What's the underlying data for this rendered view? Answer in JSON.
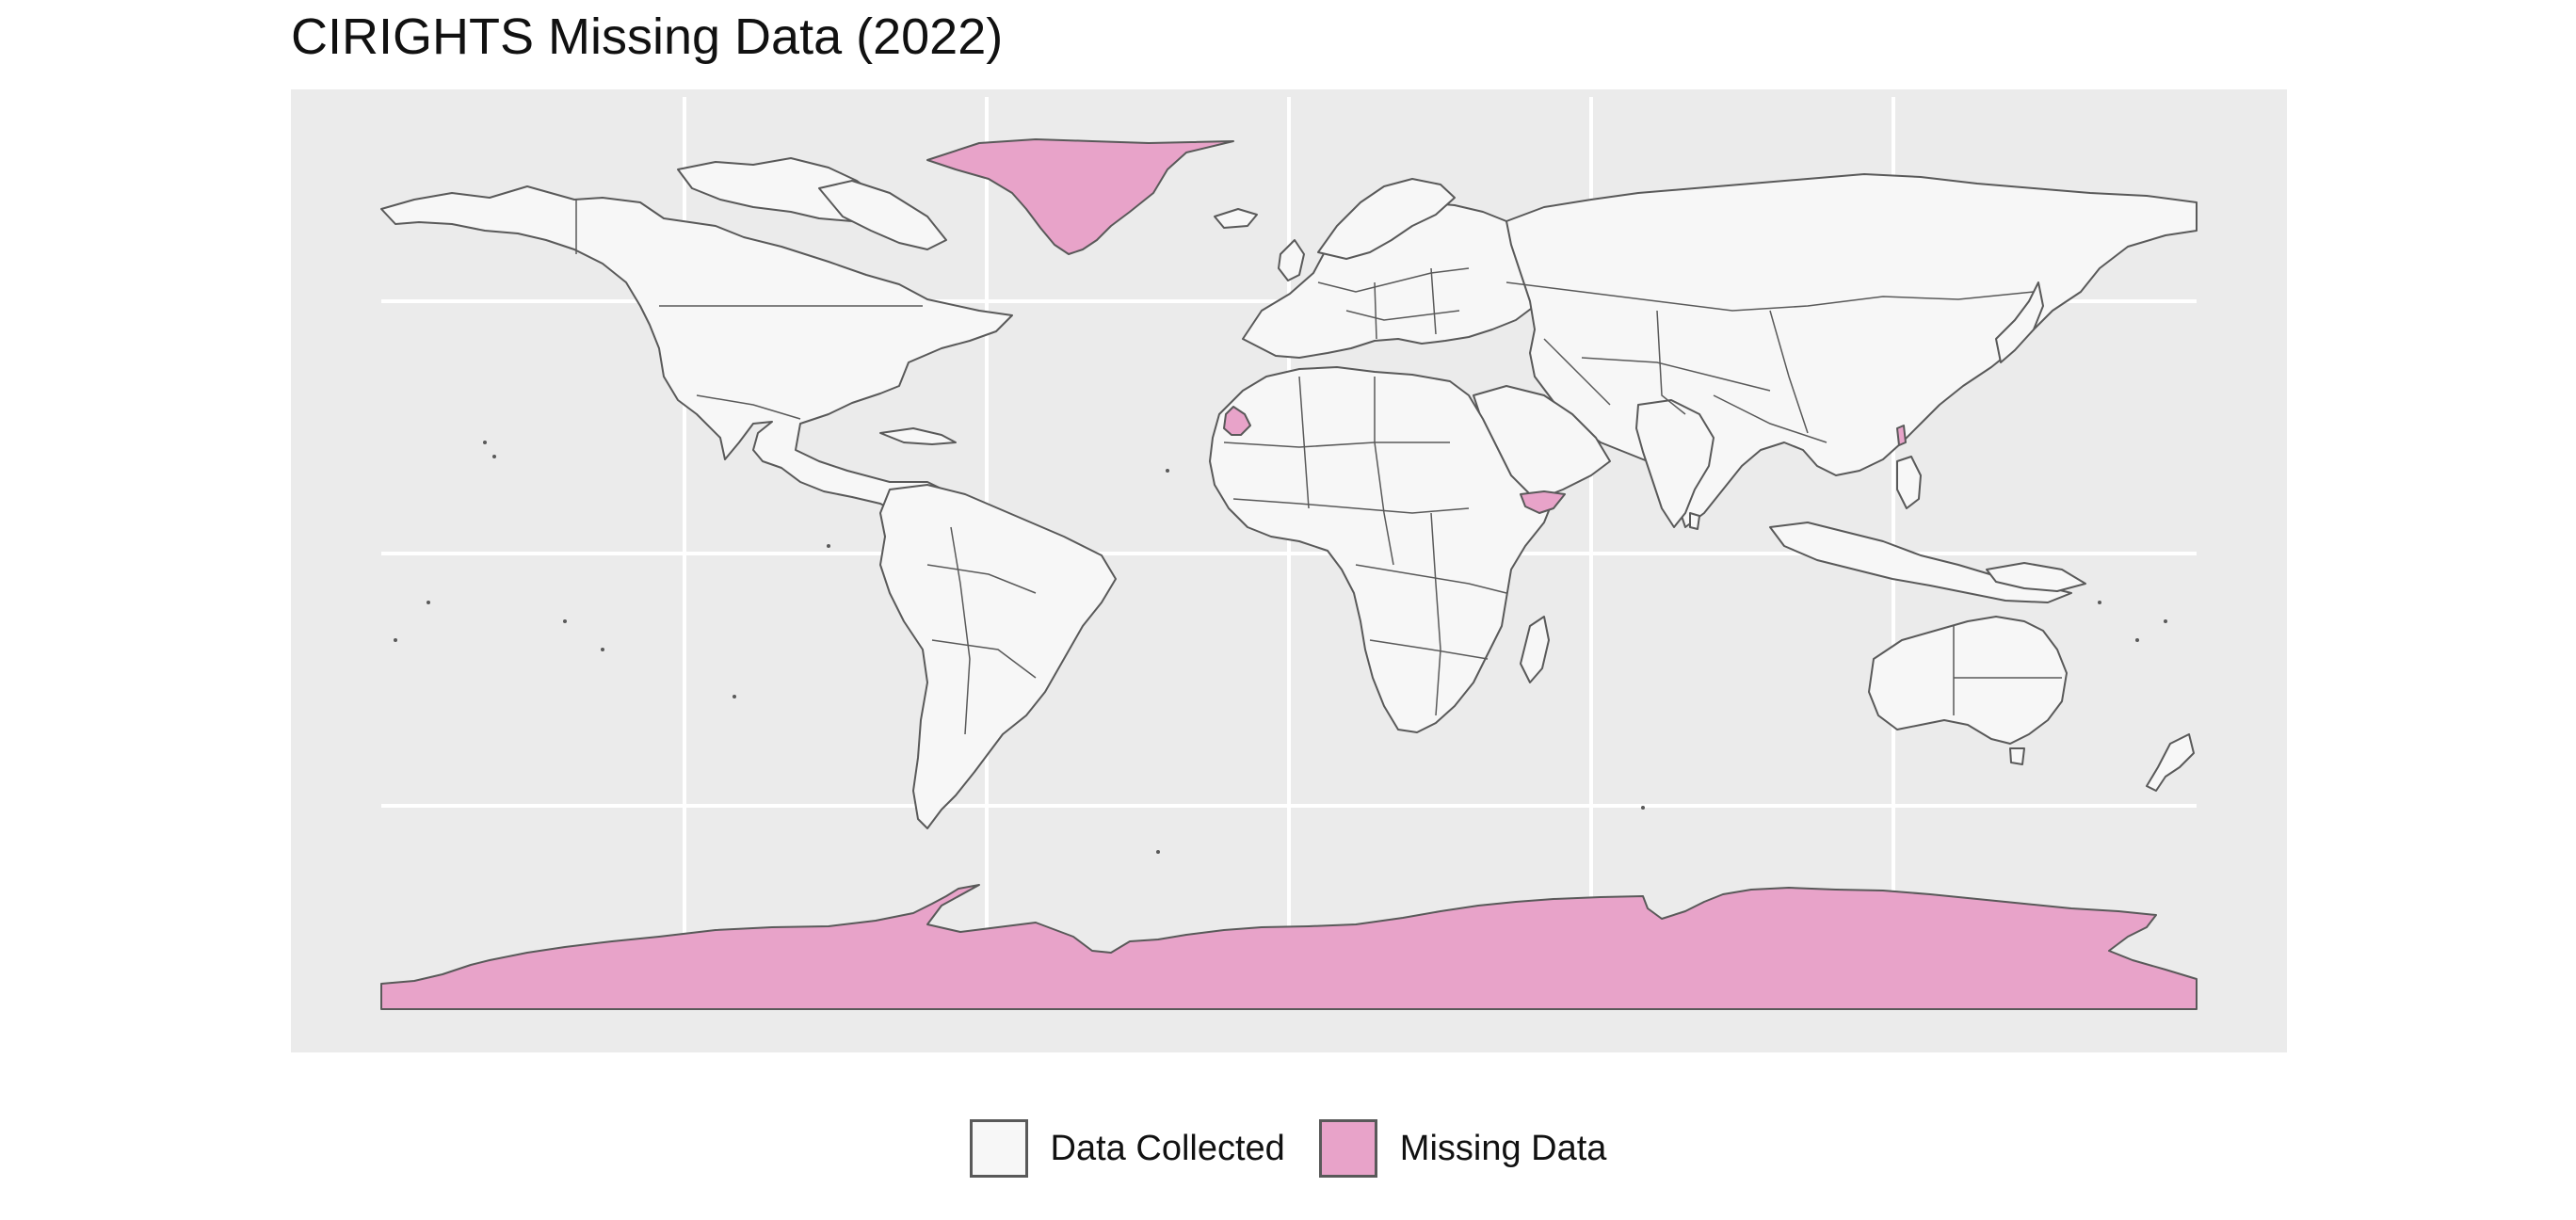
{
  "title": "CIRIGHTS Missing Data (2022)",
  "colors": {
    "panel_background": "#ebebeb",
    "gridline": "#ffffff",
    "data_collected": "#f7f7f7",
    "missing_data": "#e8a3c9",
    "border": "#595959"
  },
  "map": {
    "projection": "equirectangular",
    "grid": true,
    "missing_regions": [
      "Greenland",
      "Antarctica",
      "Western Sahara",
      "Somaliland",
      "Taiwan"
    ]
  },
  "legend": {
    "position": "bottom",
    "items": [
      {
        "label": "Data Collected",
        "color_key": "data_collected"
      },
      {
        "label": "Missing Data",
        "color_key": "missing_data"
      }
    ]
  }
}
